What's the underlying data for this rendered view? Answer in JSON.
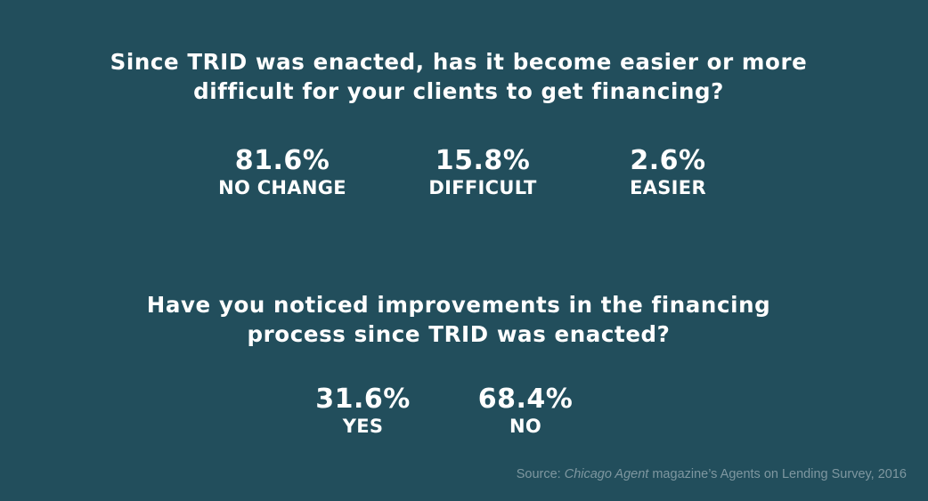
{
  "question1": {
    "line1": "Since TRID was enacted, has it become easier or more",
    "line2": "difficult for your clients to get financing?"
  },
  "question1_stats": [
    {
      "percent": "81.6%",
      "label": "NO CHANGE"
    },
    {
      "percent": "15.8%",
      "label": "DIFFICULT"
    },
    {
      "percent": "2.6%",
      "label": "EASIER"
    }
  ],
  "question2": {
    "line1": "Have you noticed improvements in the financing",
    "line2": "process since TRID was enacted?"
  },
  "question2_stats": [
    {
      "percent": "31.6%",
      "label": "YES"
    },
    {
      "percent": "68.4%",
      "label": "NO"
    }
  ],
  "source": {
    "prefix": "Source: ",
    "publication": "Chicago Agent",
    "suffix": " magazine’s Agents on Lending Survey, 2016"
  },
  "colors": {
    "background": "#224e5c",
    "text": "#ffffff",
    "source_text": "#7e97a0"
  }
}
